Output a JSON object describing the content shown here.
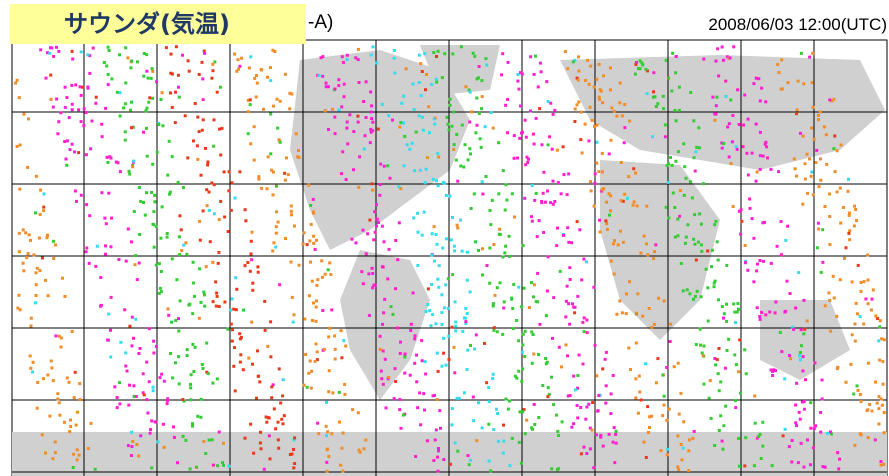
{
  "title_label": "サウンダ(気温)",
  "header_suffix": "-A)",
  "datetime": "2008/06/03 12:00(UTC)",
  "colors": {
    "land": "#d0d0d0",
    "ocean": "#ffffff",
    "grid": "#000000",
    "label_background": "#ffff99",
    "label_text": "#1f3864",
    "obs_orange": "#f28c28",
    "obs_magenta": "#ff1fd0",
    "obs_green": "#33cc33",
    "obs_cyan": "#33ddee",
    "obs_red": "#e83a1a"
  }
}
